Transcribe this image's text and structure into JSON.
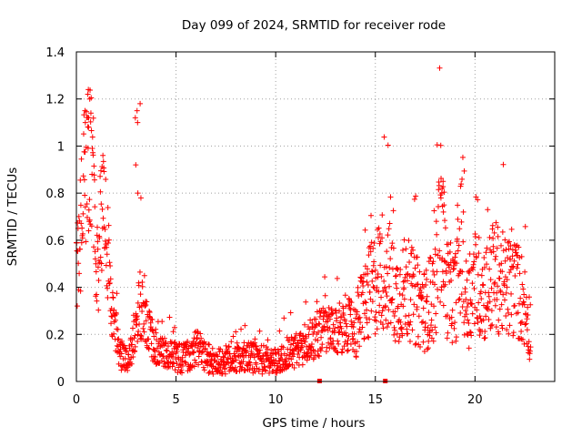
{
  "chart_data": {
    "type": "scatter",
    "title": "Day 099 of 2024, SRMTID for receiver rode",
    "xlabel": "GPS time / hours",
    "ylabel": "SRMTID / TECUs",
    "xlim": [
      0,
      24
    ],
    "ylim": [
      0,
      1.4
    ],
    "x_ticks": [
      0,
      5,
      10,
      15,
      20
    ],
    "y_ticks": [
      0,
      0.2,
      0.4,
      0.6,
      0.8,
      1.0,
      1.2,
      1.4
    ],
    "x_tick_labels": [
      "0",
      "5",
      "10",
      "15",
      "20"
    ],
    "y_tick_labels": [
      "0",
      "0.2",
      "0.4",
      "0.6",
      "0.8",
      "1",
      "1.2",
      "1.4"
    ],
    "grid": true,
    "marker": "plus",
    "series": [
      {
        "name": "SRMTID",
        "color": "#ff0000",
        "profile_x": [
          0.0,
          0.15,
          0.3,
          0.5,
          0.65,
          0.8,
          0.95,
          1.1,
          1.3,
          1.5,
          1.75,
          2.0,
          2.3,
          2.7,
          3.0,
          3.15,
          3.3,
          3.55,
          3.9,
          4.3,
          5.0,
          5.6,
          6.0,
          6.5,
          7.0,
          8.0,
          9.0,
          10.0,
          10.5,
          11.0,
          11.5,
          12.0,
          12.5,
          13.0,
          13.5,
          14.0,
          14.3,
          14.6,
          15.0,
          15.3,
          15.7,
          16.0,
          16.5,
          17.0,
          17.5,
          18.0,
          18.3,
          18.6,
          19.0,
          19.3,
          19.6,
          20.0,
          20.5,
          21.0,
          21.5,
          22.0,
          22.4,
          22.8
        ],
        "profile_y": [
          0.45,
          0.55,
          0.75,
          0.95,
          1.05,
          0.8,
          0.55,
          0.5,
          0.75,
          0.65,
          0.3,
          0.18,
          0.1,
          0.12,
          0.2,
          0.35,
          0.3,
          0.25,
          0.15,
          0.12,
          0.1,
          0.1,
          0.15,
          0.1,
          0.08,
          0.1,
          0.1,
          0.08,
          0.12,
          0.13,
          0.15,
          0.2,
          0.22,
          0.2,
          0.25,
          0.22,
          0.3,
          0.35,
          0.42,
          0.48,
          0.45,
          0.35,
          0.4,
          0.35,
          0.3,
          0.38,
          0.7,
          0.4,
          0.35,
          0.58,
          0.3,
          0.42,
          0.38,
          0.45,
          0.4,
          0.4,
          0.35,
          0.22
        ],
        "spikes": [
          {
            "x": 0.55,
            "values": [
              1.1,
              1.08,
              1.12,
              1.22,
              1.24,
              1.2,
              1.15
            ]
          },
          {
            "x": 3.1,
            "values": [
              1.18,
              1.15,
              1.12,
              1.1,
              0.92,
              0.8,
              0.78
            ]
          },
          {
            "x": 18.3,
            "values": [
              0.85,
              0.82,
              0.8,
              0.78,
              0.75,
              0.72
            ]
          }
        ],
        "ground_markers": [
          12.2,
          15.5
        ]
      }
    ]
  }
}
